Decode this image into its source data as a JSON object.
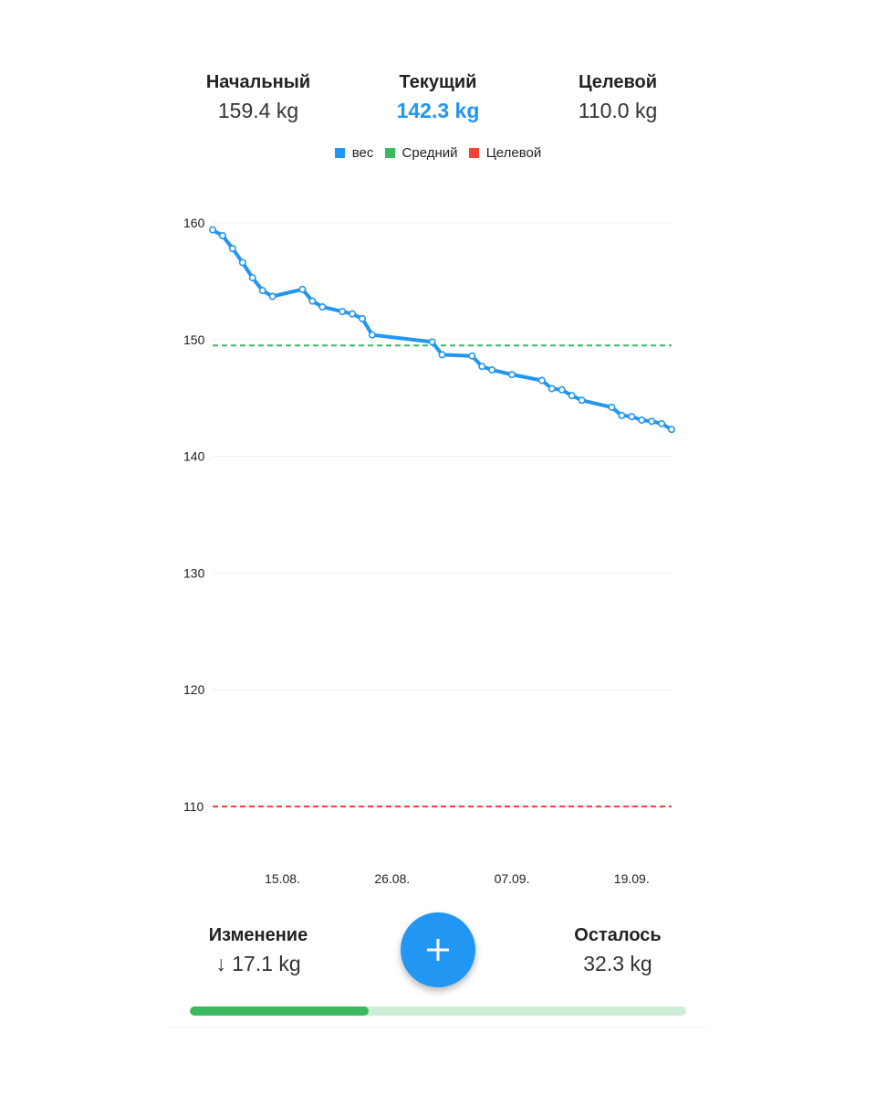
{
  "stats": {
    "start": {
      "label": "Начальный",
      "value": "159.4 kg"
    },
    "current": {
      "label": "Текущий",
      "value": "142.3 kg"
    },
    "target": {
      "label": "Целевой",
      "value": "110.0 kg"
    }
  },
  "legend": [
    {
      "label": "вес",
      "color": "#2196f3"
    },
    {
      "label": "Средний",
      "color": "#3cb960"
    },
    {
      "label": "Целевой",
      "color": "#f44336"
    }
  ],
  "chart_data": {
    "type": "line",
    "ylim": [
      106,
      161
    ],
    "yticks": [
      160,
      150,
      140,
      130,
      120,
      110
    ],
    "x_range": [
      "2023-08-08",
      "2023-09-23"
    ],
    "xticks": [
      {
        "label": "15.08.",
        "date": "2023-08-15"
      },
      {
        "label": "26.08.",
        "date": "2023-08-26"
      },
      {
        "label": "07.09.",
        "date": "2023-09-07"
      },
      {
        "label": "19.09.",
        "date": "2023-09-19"
      }
    ],
    "series": [
      {
        "name": "вес",
        "color": "#2196f3",
        "points": [
          [
            "2023-08-08",
            159.4
          ],
          [
            "2023-08-09",
            158.9
          ],
          [
            "2023-08-10",
            157.8
          ],
          [
            "2023-08-11",
            156.6
          ],
          [
            "2023-08-12",
            155.3
          ],
          [
            "2023-08-13",
            154.2
          ],
          [
            "2023-08-14",
            153.7
          ],
          [
            "2023-08-17",
            154.3
          ],
          [
            "2023-08-18",
            153.3
          ],
          [
            "2023-08-19",
            152.8
          ],
          [
            "2023-08-21",
            152.4
          ],
          [
            "2023-08-22",
            152.2
          ],
          [
            "2023-08-23",
            151.8
          ],
          [
            "2023-08-24",
            150.4
          ],
          [
            "2023-08-30",
            149.8
          ],
          [
            "2023-08-31",
            148.7
          ],
          [
            "2023-09-03",
            148.6
          ],
          [
            "2023-09-04",
            147.7
          ],
          [
            "2023-09-05",
            147.4
          ],
          [
            "2023-09-07",
            147.0
          ],
          [
            "2023-09-10",
            146.5
          ],
          [
            "2023-09-11",
            145.8
          ],
          [
            "2023-09-12",
            145.7
          ],
          [
            "2023-09-13",
            145.2
          ],
          [
            "2023-09-14",
            144.8
          ],
          [
            "2023-09-17",
            144.2
          ],
          [
            "2023-09-18",
            143.5
          ],
          [
            "2023-09-19",
            143.4
          ],
          [
            "2023-09-20",
            143.1
          ],
          [
            "2023-09-21",
            143.0
          ],
          [
            "2023-09-22",
            142.8
          ],
          [
            "2023-09-23",
            142.3
          ]
        ]
      },
      {
        "name": "Средний",
        "color": "#3cb960",
        "value": 149.5,
        "style": "dashed"
      },
      {
        "name": "Целевой",
        "color": "#f44336",
        "value": 110,
        "style": "dashed"
      }
    ]
  },
  "summary": {
    "change": {
      "label": "Изменение",
      "value": "↓ 17.1 kg"
    },
    "remaining": {
      "label": "Осталось",
      "value": "32.3 kg"
    }
  },
  "progress": {
    "fraction": 0.36,
    "color": "#3cb960",
    "track_color": "#cdeed6"
  },
  "add_button": {
    "icon": "plus-icon",
    "color": "#2196f3"
  }
}
